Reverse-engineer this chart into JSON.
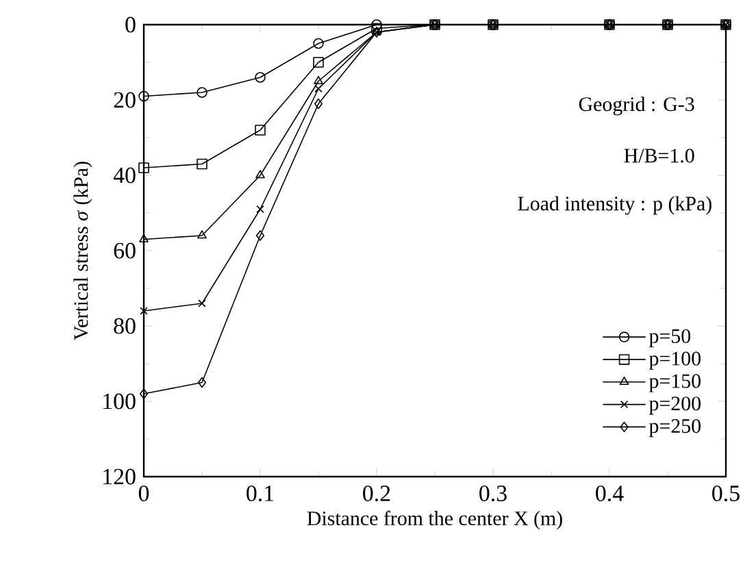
{
  "chart_data": {
    "type": "line",
    "xlabel": "Distance from the center X (m)",
    "ylabel": "Vertical stress *σ* (kPa)",
    "legend_title": "Load intensity : p (kPa)",
    "annotations": [
      "Geogrid : G-3",
      "H/B=1.0"
    ],
    "x": [
      0,
      0.05,
      0.1,
      0.15,
      0.2,
      0.25,
      0.3,
      0.4,
      0.45,
      0.5
    ],
    "xlim": [
      0,
      0.5
    ],
    "xticks": [
      0,
      0.1,
      0.2,
      0.3,
      0.4,
      0.5
    ],
    "ylim": [
      120,
      0
    ],
    "yticks": [
      0,
      20,
      40,
      60,
      80,
      100,
      120
    ],
    "legend": "right",
    "series": [
      {
        "name": "p=50",
        "color": "#000000",
        "marker": "circle",
        "values": [
          19,
          18,
          14,
          5,
          0,
          0,
          0,
          0,
          0,
          0
        ]
      },
      {
        "name": "p=100",
        "color": "#000000",
        "marker": "square",
        "values": [
          38,
          37,
          28,
          10,
          1,
          0,
          0,
          0,
          0,
          0
        ]
      },
      {
        "name": "p=150",
        "color": "#000000",
        "marker": "triangle",
        "values": [
          57,
          56,
          40,
          15,
          2,
          0,
          0,
          0,
          0,
          0
        ]
      },
      {
        "name": "p=200",
        "color": "#000000",
        "marker": "cross",
        "values": [
          76,
          74,
          49,
          17,
          2,
          0,
          0,
          0,
          0,
          0
        ]
      },
      {
        "name": "p=250",
        "color": "#000000",
        "marker": "diamond",
        "values": [
          98,
          95,
          56,
          21,
          2,
          0,
          0,
          0,
          0,
          0
        ]
      }
    ]
  }
}
